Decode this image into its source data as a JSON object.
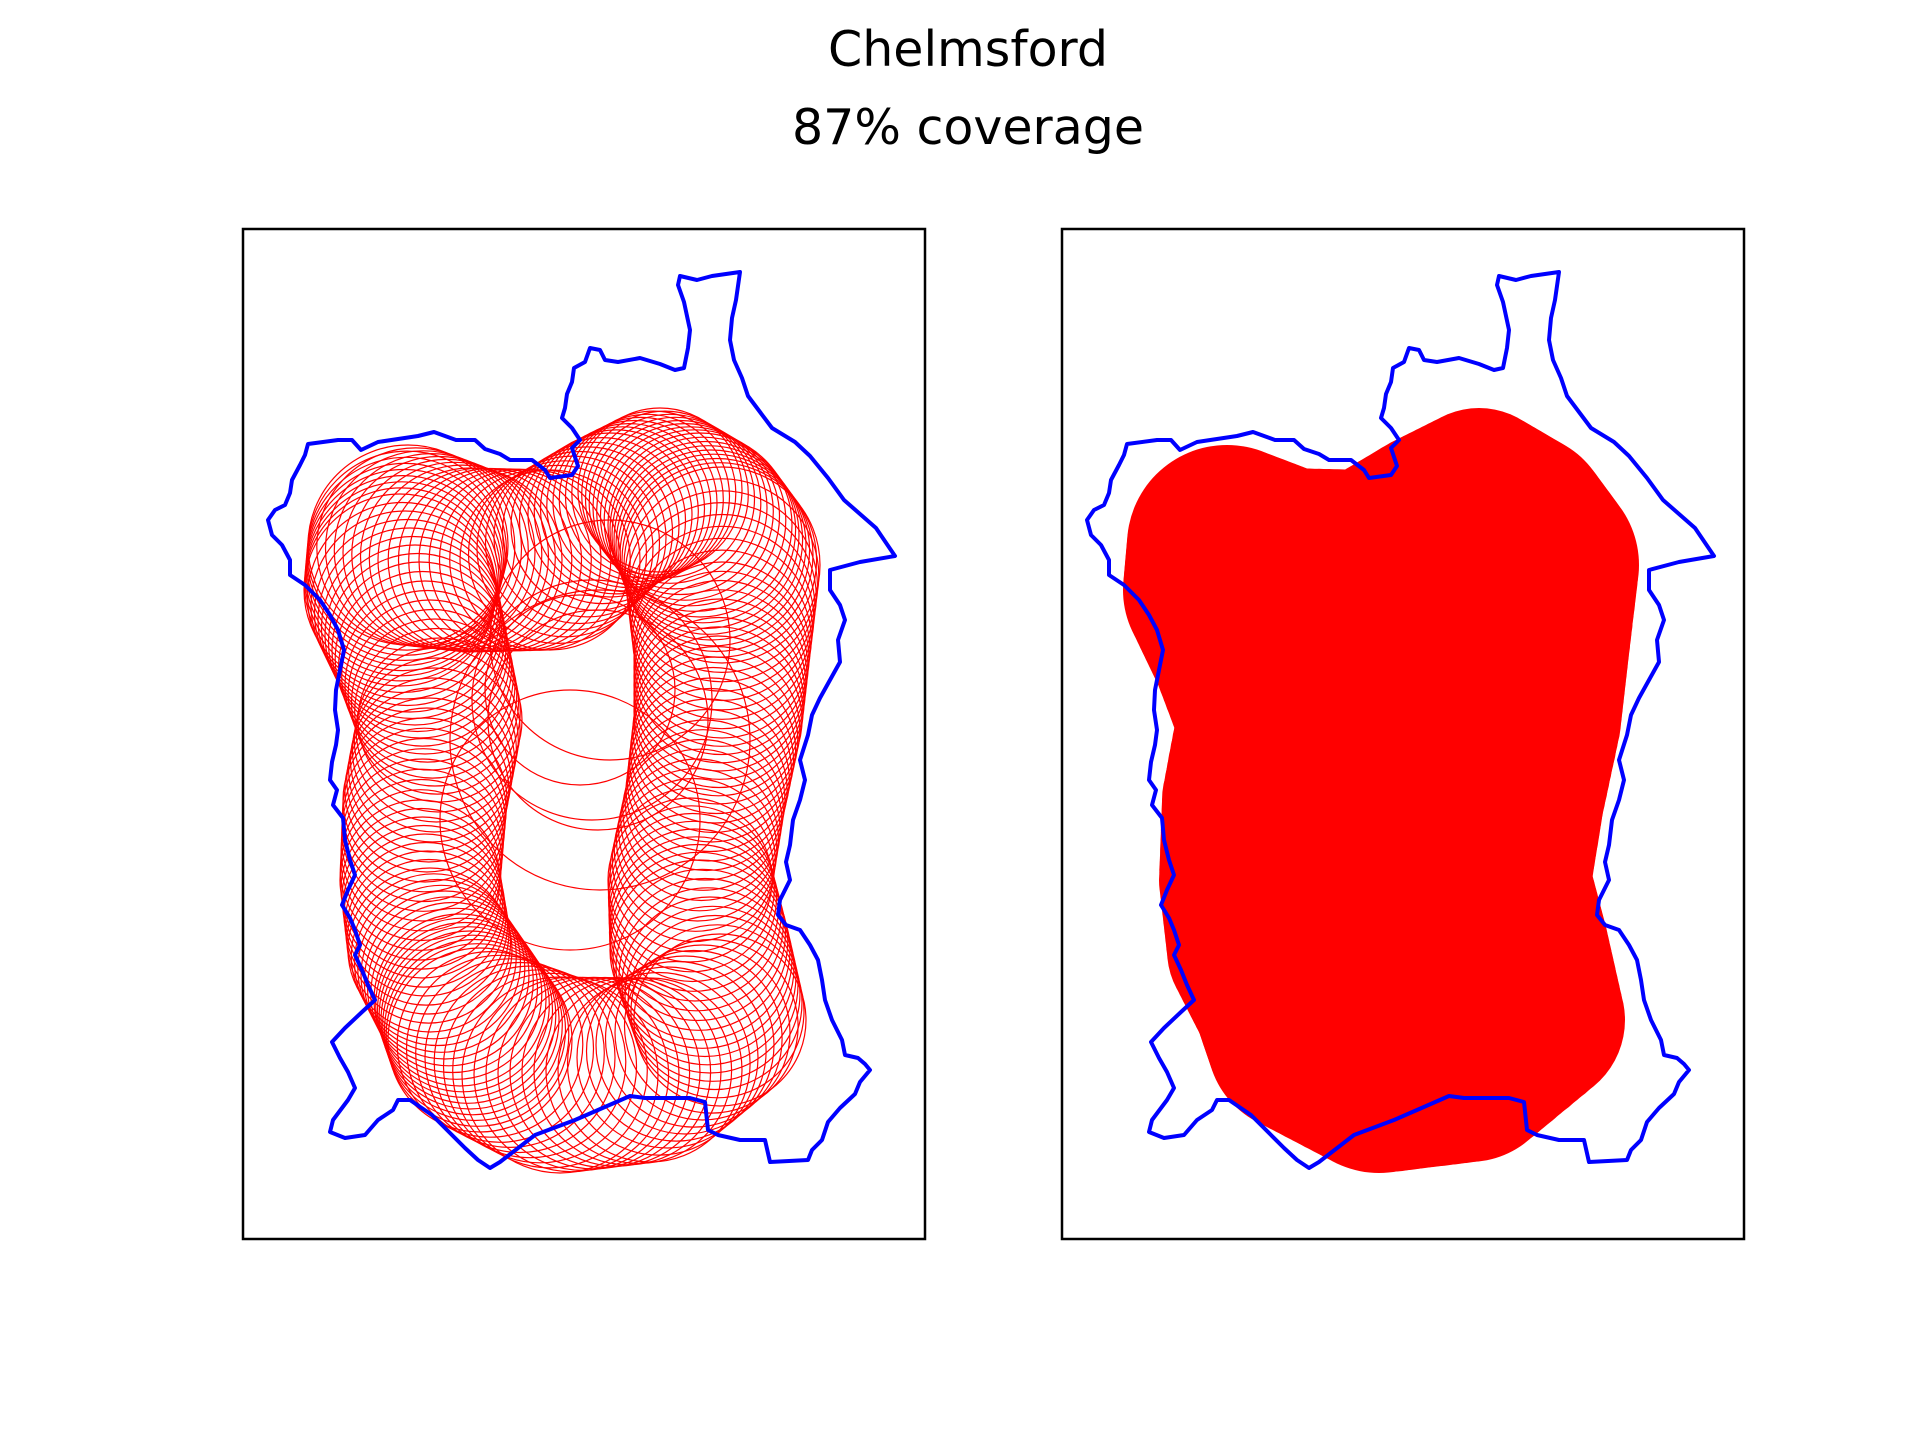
{
  "figure": {
    "title": "Chelmsford",
    "subtitle": "87% coverage"
  },
  "colors": {
    "boundary": "#0000ff",
    "coverage": "#ff0000",
    "axes_frame": "#000000",
    "background": "#ffffff"
  },
  "panels": [
    {
      "name": "left",
      "coverage_style": "outlined-circles"
    },
    {
      "name": "right",
      "coverage_style": "filled-circles"
    }
  ]
}
